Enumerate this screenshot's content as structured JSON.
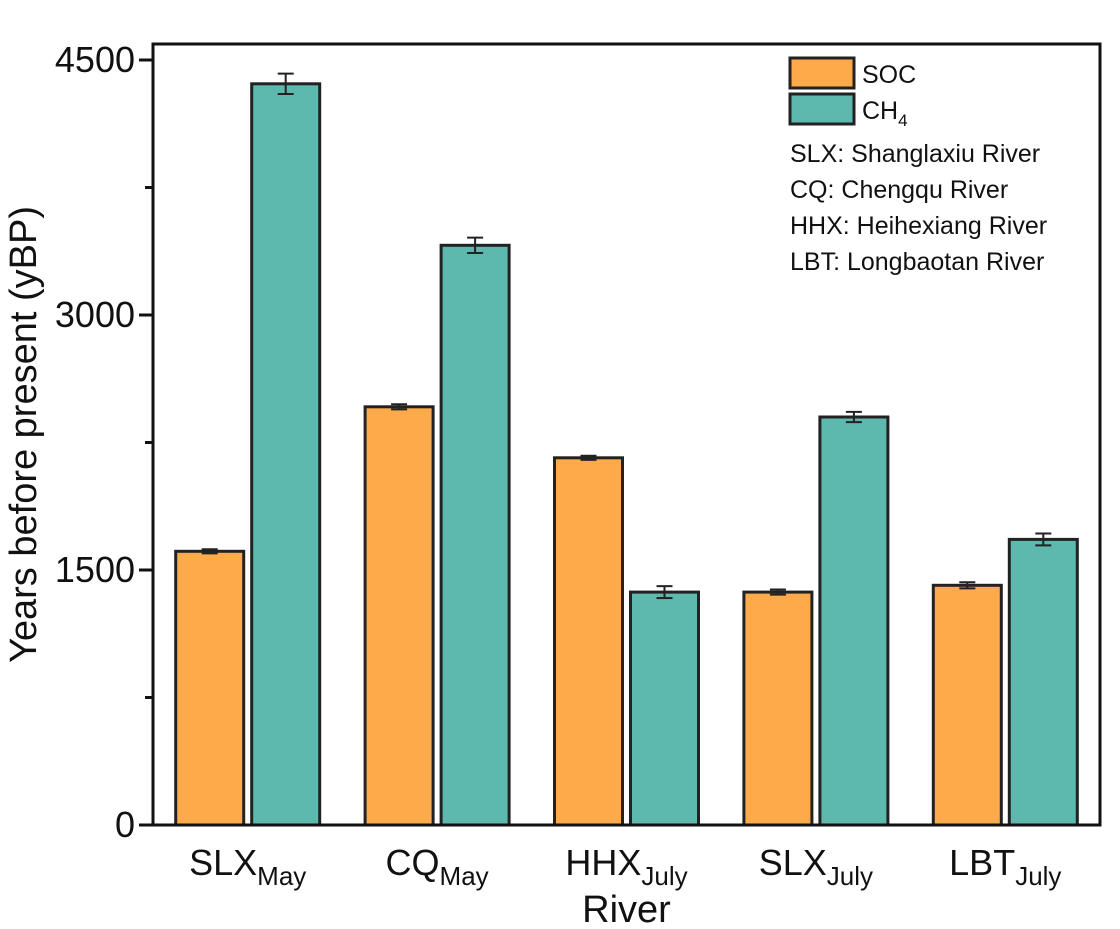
{
  "chart_data": {
    "type": "bar",
    "xlabel": "River",
    "ylabel": "Years before present (yBP)",
    "ylim": [
      0,
      4500
    ],
    "yticks": [
      0,
      1500,
      3000,
      4500
    ],
    "y_minor_ticks": [
      750,
      2250,
      3750
    ],
    "categories": [
      {
        "main": "SLX",
        "sub": "May"
      },
      {
        "main": "CQ",
        "sub": "May"
      },
      {
        "main": "HHX",
        "sub": "July"
      },
      {
        "main": "SLX",
        "sub": "July"
      },
      {
        "main": "LBT",
        "sub": "July"
      }
    ],
    "series": [
      {
        "name": "SOC",
        "color": "#FDAA4B",
        "values": [
          1610,
          2460,
          2160,
          1370,
          1410
        ],
        "errors": [
          12,
          15,
          12,
          15,
          18
        ]
      },
      {
        "name": "CH4",
        "name_main": "CH",
        "name_sub": "4",
        "color": "#5DB8AE",
        "values": [
          4360,
          3410,
          1370,
          2400,
          1680
        ],
        "errors": [
          60,
          45,
          35,
          30,
          35
        ]
      }
    ],
    "legend": {
      "placement": "top-right",
      "notes": [
        "SLX: Shanglaxiu River",
        "CQ: Chengqu River",
        "HHX: Heihexiang River",
        "LBT: Longbaotan River"
      ]
    },
    "grid": false
  }
}
